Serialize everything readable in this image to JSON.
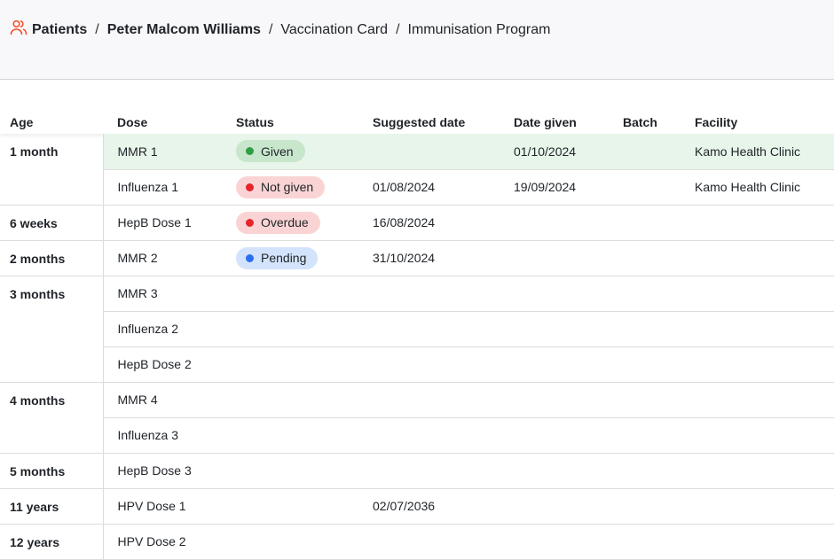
{
  "breadcrumb": [
    {
      "label": "Patients",
      "icon": "users-icon",
      "bold": true
    },
    {
      "label": "Peter Malcom Williams",
      "bold": true
    },
    {
      "label": "Vaccination Card"
    },
    {
      "label": "Immunisation Program"
    }
  ],
  "separator": "/",
  "columns": [
    "Age",
    "Dose",
    "Status",
    "Suggested date",
    "Date given",
    "Batch",
    "Facility"
  ],
  "status_colors": {
    "Given": {
      "bg": "#c8e6cc",
      "dot": "#2ea043"
    },
    "Not given": {
      "bg": "#fad4d4",
      "dot": "#e5252a"
    },
    "Overdue": {
      "bg": "#fad4d4",
      "dot": "#e5252a"
    },
    "Pending": {
      "bg": "#d3e3fb",
      "dot": "#2b6ff0"
    }
  },
  "groups": [
    {
      "age": "1 month",
      "rows": [
        {
          "dose": "MMR 1",
          "status": "Given",
          "suggested": "",
          "given": "01/10/2024",
          "batch": "",
          "facility": "Kamo Health Clinic",
          "highlight": true
        },
        {
          "dose": "Influenza 1",
          "status": "Not given",
          "suggested": "01/08/2024",
          "given": "19/09/2024",
          "batch": "",
          "facility": "Kamo Health Clinic"
        }
      ]
    },
    {
      "age": "6 weeks",
      "rows": [
        {
          "dose": "HepB Dose 1",
          "status": "Overdue",
          "suggested": "16/08/2024",
          "given": "",
          "batch": "",
          "facility": ""
        }
      ]
    },
    {
      "age": "2 months",
      "rows": [
        {
          "dose": "MMR 2",
          "status": "Pending",
          "suggested": "31/10/2024",
          "given": "",
          "batch": "",
          "facility": ""
        }
      ]
    },
    {
      "age": "3 months",
      "rows": [
        {
          "dose": "MMR 3"
        },
        {
          "dose": "Influenza 2"
        },
        {
          "dose": "HepB Dose 2"
        }
      ]
    },
    {
      "age": "4 months",
      "rows": [
        {
          "dose": "MMR 4"
        },
        {
          "dose": "Influenza 3"
        }
      ]
    },
    {
      "age": "5 months",
      "rows": [
        {
          "dose": "HepB Dose 3"
        }
      ]
    },
    {
      "age": "11 years",
      "rows": [
        {
          "dose": "HPV Dose 1",
          "suggested": "02/07/2036"
        }
      ]
    },
    {
      "age": "12 years",
      "rows": [
        {
          "dose": "HPV Dose 2"
        }
      ]
    }
  ]
}
